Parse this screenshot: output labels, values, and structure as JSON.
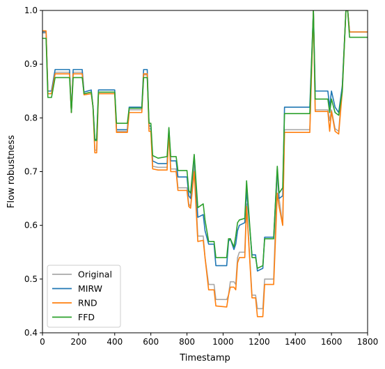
{
  "chart_data": {
    "type": "line",
    "xlabel": "Timestamp",
    "ylabel": "Flow robustness",
    "xlim": [
      0,
      1800
    ],
    "ylim": [
      0.4,
      1.0
    ],
    "xticks": [
      0,
      200,
      400,
      600,
      800,
      1000,
      1200,
      1400,
      1600,
      1800
    ],
    "yticks": [
      0.4,
      0.5,
      0.6,
      0.7,
      0.8,
      0.9,
      1.0
    ],
    "xtick_labels": [
      "0",
      "200",
      "400",
      "600",
      "800",
      "1000",
      "1200",
      "1400",
      "1600",
      "1800"
    ],
    "ytick_labels": [
      "0.4",
      "0.5",
      "0.6",
      "0.7",
      "0.8",
      "0.9",
      "1.0"
    ],
    "grid": false,
    "legend_position": "lower-left",
    "series": [
      {
        "name": "Original",
        "color": "#a8a8a8",
        "points": [
          [
            0,
            0.958
          ],
          [
            10,
            0.958
          ],
          [
            20,
            0.958
          ],
          [
            30,
            0.85
          ],
          [
            50,
            0.85
          ],
          [
            70,
            0.885
          ],
          [
            150,
            0.885
          ],
          [
            160,
            0.81
          ],
          [
            170,
            0.885
          ],
          [
            220,
            0.885
          ],
          [
            230,
            0.845
          ],
          [
            270,
            0.848
          ],
          [
            280,
            0.82
          ],
          [
            290,
            0.74
          ],
          [
            300,
            0.74
          ],
          [
            310,
            0.848
          ],
          [
            400,
            0.848
          ],
          [
            410,
            0.775
          ],
          [
            470,
            0.775
          ],
          [
            480,
            0.815
          ],
          [
            550,
            0.815
          ],
          [
            560,
            0.88
          ],
          [
            580,
            0.88
          ],
          [
            590,
            0.78
          ],
          [
            600,
            0.78
          ],
          [
            610,
            0.71
          ],
          [
            640,
            0.708
          ],
          [
            690,
            0.708
          ],
          [
            700,
            0.775
          ],
          [
            710,
            0.705
          ],
          [
            740,
            0.705
          ],
          [
            750,
            0.67
          ],
          [
            800,
            0.67
          ],
          [
            810,
            0.64
          ],
          [
            820,
            0.635
          ],
          [
            840,
            0.715
          ],
          [
            860,
            0.58
          ],
          [
            890,
            0.58
          ],
          [
            900,
            0.54
          ],
          [
            920,
            0.49
          ],
          [
            950,
            0.49
          ],
          [
            960,
            0.462
          ],
          [
            1020,
            0.462
          ],
          [
            1030,
            0.47
          ],
          [
            1040,
            0.495
          ],
          [
            1060,
            0.495
          ],
          [
            1070,
            0.49
          ],
          [
            1080,
            0.54
          ],
          [
            1090,
            0.55
          ],
          [
            1120,
            0.55
          ],
          [
            1130,
            0.64
          ],
          [
            1160,
            0.47
          ],
          [
            1180,
            0.47
          ],
          [
            1190,
            0.445
          ],
          [
            1220,
            0.445
          ],
          [
            1230,
            0.5
          ],
          [
            1280,
            0.5
          ],
          [
            1300,
            0.7
          ],
          [
            1310,
            0.65
          ],
          [
            1330,
            0.6
          ],
          [
            1340,
            0.778
          ],
          [
            1400,
            0.778
          ],
          [
            1480,
            0.778
          ],
          [
            1500,
            1.0
          ],
          [
            1510,
            0.815
          ],
          [
            1580,
            0.815
          ],
          [
            1590,
            0.795
          ],
          [
            1600,
            0.815
          ],
          [
            1620,
            0.78
          ],
          [
            1640,
            0.775
          ],
          [
            1660,
            0.86
          ],
          [
            1680,
            1.0
          ],
          [
            1690,
            1.0
          ],
          [
            1700,
            0.96
          ],
          [
            1800,
            0.96
          ]
        ]
      },
      {
        "name": "MIRW",
        "color": "#1f77b4",
        "points": [
          [
            0,
            0.96
          ],
          [
            10,
            0.96
          ],
          [
            20,
            0.96
          ],
          [
            30,
            0.85
          ],
          [
            50,
            0.85
          ],
          [
            70,
            0.89
          ],
          [
            150,
            0.89
          ],
          [
            160,
            0.81
          ],
          [
            170,
            0.89
          ],
          [
            220,
            0.89
          ],
          [
            230,
            0.848
          ],
          [
            270,
            0.852
          ],
          [
            280,
            0.82
          ],
          [
            290,
            0.76
          ],
          [
            300,
            0.76
          ],
          [
            310,
            0.852
          ],
          [
            400,
            0.852
          ],
          [
            410,
            0.778
          ],
          [
            470,
            0.778
          ],
          [
            480,
            0.82
          ],
          [
            550,
            0.82
          ],
          [
            560,
            0.89
          ],
          [
            580,
            0.89
          ],
          [
            590,
            0.785
          ],
          [
            600,
            0.785
          ],
          [
            610,
            0.72
          ],
          [
            640,
            0.715
          ],
          [
            690,
            0.715
          ],
          [
            700,
            0.78
          ],
          [
            710,
            0.72
          ],
          [
            740,
            0.72
          ],
          [
            750,
            0.69
          ],
          [
            800,
            0.69
          ],
          [
            810,
            0.655
          ],
          [
            820,
            0.65
          ],
          [
            840,
            0.73
          ],
          [
            860,
            0.615
          ],
          [
            890,
            0.62
          ],
          [
            900,
            0.59
          ],
          [
            920,
            0.565
          ],
          [
            950,
            0.565
          ],
          [
            960,
            0.525
          ],
          [
            1020,
            0.525
          ],
          [
            1030,
            0.57
          ],
          [
            1040,
            0.575
          ],
          [
            1060,
            0.555
          ],
          [
            1070,
            0.565
          ],
          [
            1080,
            0.59
          ],
          [
            1090,
            0.6
          ],
          [
            1120,
            0.605
          ],
          [
            1130,
            0.665
          ],
          [
            1160,
            0.545
          ],
          [
            1180,
            0.545
          ],
          [
            1190,
            0.515
          ],
          [
            1220,
            0.52
          ],
          [
            1230,
            0.578
          ],
          [
            1280,
            0.578
          ],
          [
            1300,
            0.705
          ],
          [
            1310,
            0.65
          ],
          [
            1330,
            0.655
          ],
          [
            1340,
            0.82
          ],
          [
            1400,
            0.82
          ],
          [
            1480,
            0.82
          ],
          [
            1500,
            1.0
          ],
          [
            1510,
            0.85
          ],
          [
            1580,
            0.85
          ],
          [
            1590,
            0.82
          ],
          [
            1600,
            0.85
          ],
          [
            1620,
            0.82
          ],
          [
            1640,
            0.81
          ],
          [
            1660,
            0.86
          ],
          [
            1680,
            1.0
          ],
          [
            1690,
            1.0
          ],
          [
            1700,
            0.96
          ],
          [
            1800,
            0.96
          ]
        ]
      },
      {
        "name": "RND",
        "color": "#ff7f0e",
        "points": [
          [
            0,
            0.962
          ],
          [
            10,
            0.962
          ],
          [
            20,
            0.962
          ],
          [
            30,
            0.845
          ],
          [
            50,
            0.845
          ],
          [
            70,
            0.882
          ],
          [
            150,
            0.882
          ],
          [
            160,
            0.81
          ],
          [
            170,
            0.882
          ],
          [
            220,
            0.882
          ],
          [
            230,
            0.843
          ],
          [
            270,
            0.845
          ],
          [
            280,
            0.82
          ],
          [
            290,
            0.735
          ],
          [
            300,
            0.735
          ],
          [
            310,
            0.845
          ],
          [
            400,
            0.845
          ],
          [
            410,
            0.773
          ],
          [
            470,
            0.773
          ],
          [
            480,
            0.81
          ],
          [
            550,
            0.81
          ],
          [
            560,
            0.882
          ],
          [
            580,
            0.882
          ],
          [
            590,
            0.775
          ],
          [
            600,
            0.775
          ],
          [
            610,
            0.705
          ],
          [
            640,
            0.703
          ],
          [
            690,
            0.703
          ],
          [
            700,
            0.775
          ],
          [
            710,
            0.7
          ],
          [
            740,
            0.7
          ],
          [
            750,
            0.665
          ],
          [
            800,
            0.665
          ],
          [
            810,
            0.635
          ],
          [
            820,
            0.632
          ],
          [
            840,
            0.7
          ],
          [
            860,
            0.57
          ],
          [
            890,
            0.572
          ],
          [
            900,
            0.54
          ],
          [
            920,
            0.48
          ],
          [
            950,
            0.48
          ],
          [
            960,
            0.45
          ],
          [
            1020,
            0.448
          ],
          [
            1030,
            0.47
          ],
          [
            1040,
            0.485
          ],
          [
            1060,
            0.485
          ],
          [
            1070,
            0.48
          ],
          [
            1080,
            0.53
          ],
          [
            1090,
            0.54
          ],
          [
            1120,
            0.54
          ],
          [
            1130,
            0.635
          ],
          [
            1160,
            0.465
          ],
          [
            1180,
            0.465
          ],
          [
            1190,
            0.43
          ],
          [
            1220,
            0.43
          ],
          [
            1230,
            0.49
          ],
          [
            1280,
            0.49
          ],
          [
            1300,
            0.66
          ],
          [
            1310,
            0.635
          ],
          [
            1330,
            0.6
          ],
          [
            1340,
            0.773
          ],
          [
            1400,
            0.773
          ],
          [
            1480,
            0.773
          ],
          [
            1500,
            1.0
          ],
          [
            1510,
            0.812
          ],
          [
            1580,
            0.812
          ],
          [
            1590,
            0.775
          ],
          [
            1600,
            0.812
          ],
          [
            1620,
            0.775
          ],
          [
            1640,
            0.77
          ],
          [
            1660,
            0.85
          ],
          [
            1680,
            1.0
          ],
          [
            1690,
            1.0
          ],
          [
            1700,
            0.96
          ],
          [
            1800,
            0.96
          ]
        ]
      },
      {
        "name": "FFD",
        "color": "#2ca02c",
        "points": [
          [
            0,
            0.948
          ],
          [
            10,
            0.948
          ],
          [
            20,
            0.948
          ],
          [
            30,
            0.838
          ],
          [
            50,
            0.838
          ],
          [
            70,
            0.875
          ],
          [
            150,
            0.875
          ],
          [
            160,
            0.81
          ],
          [
            170,
            0.875
          ],
          [
            220,
            0.875
          ],
          [
            230,
            0.845
          ],
          [
            270,
            0.848
          ],
          [
            280,
            0.82
          ],
          [
            290,
            0.758
          ],
          [
            300,
            0.758
          ],
          [
            310,
            0.848
          ],
          [
            400,
            0.848
          ],
          [
            410,
            0.79
          ],
          [
            470,
            0.79
          ],
          [
            480,
            0.818
          ],
          [
            550,
            0.818
          ],
          [
            560,
            0.875
          ],
          [
            580,
            0.875
          ],
          [
            590,
            0.79
          ],
          [
            600,
            0.79
          ],
          [
            610,
            0.73
          ],
          [
            640,
            0.725
          ],
          [
            690,
            0.728
          ],
          [
            700,
            0.782
          ],
          [
            710,
            0.728
          ],
          [
            740,
            0.728
          ],
          [
            750,
            0.702
          ],
          [
            800,
            0.702
          ],
          [
            810,
            0.665
          ],
          [
            820,
            0.66
          ],
          [
            840,
            0.732
          ],
          [
            860,
            0.633
          ],
          [
            890,
            0.64
          ],
          [
            900,
            0.61
          ],
          [
            920,
            0.57
          ],
          [
            950,
            0.57
          ],
          [
            960,
            0.54
          ],
          [
            1020,
            0.54
          ],
          [
            1030,
            0.575
          ],
          [
            1040,
            0.575
          ],
          [
            1060,
            0.56
          ],
          [
            1070,
            0.58
          ],
          [
            1080,
            0.605
          ],
          [
            1090,
            0.61
          ],
          [
            1120,
            0.613
          ],
          [
            1130,
            0.683
          ],
          [
            1160,
            0.54
          ],
          [
            1180,
            0.54
          ],
          [
            1190,
            0.52
          ],
          [
            1220,
            0.525
          ],
          [
            1230,
            0.575
          ],
          [
            1280,
            0.575
          ],
          [
            1300,
            0.71
          ],
          [
            1310,
            0.66
          ],
          [
            1330,
            0.67
          ],
          [
            1340,
            0.808
          ],
          [
            1400,
            0.808
          ],
          [
            1480,
            0.808
          ],
          [
            1500,
            1.0
          ],
          [
            1510,
            0.835
          ],
          [
            1580,
            0.835
          ],
          [
            1590,
            0.81
          ],
          [
            1600,
            0.835
          ],
          [
            1620,
            0.81
          ],
          [
            1640,
            0.805
          ],
          [
            1660,
            0.85
          ],
          [
            1680,
            1.0
          ],
          [
            1690,
            1.0
          ],
          [
            1700,
            0.95
          ],
          [
            1800,
            0.95
          ]
        ]
      }
    ]
  }
}
